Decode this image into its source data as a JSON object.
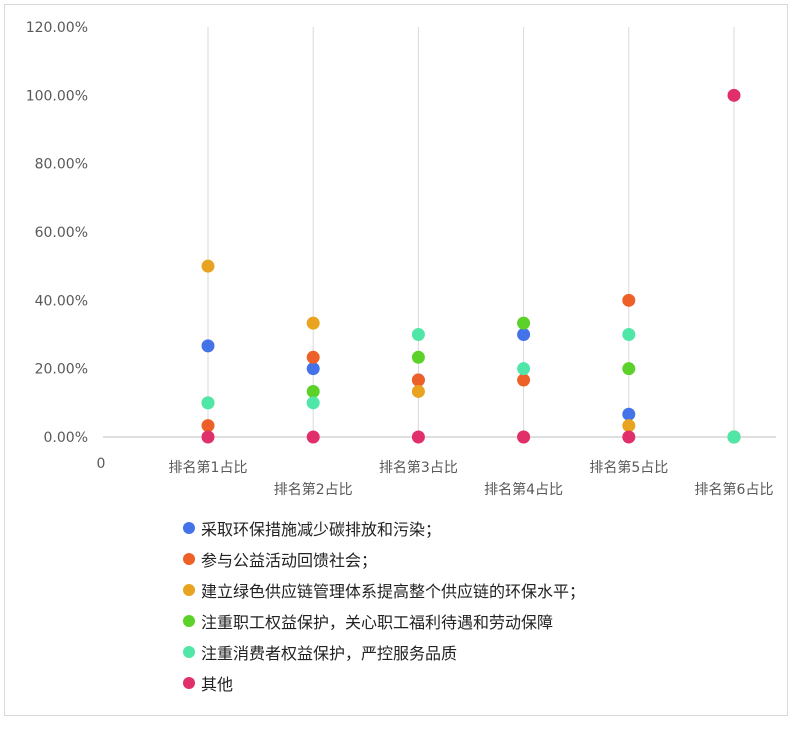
{
  "chart_data": {
    "type": "scatter",
    "title": "",
    "xlabel": "",
    "ylabel": "",
    "x_origin_label": "0",
    "categories": [
      "排名第1占比",
      "排名第2占比",
      "排名第3占比",
      "排名第4占比",
      "排名第5占比",
      "排名第6占比"
    ],
    "ylim": [
      0,
      120
    ],
    "yticks": [
      "0.00%",
      "20.00%",
      "40.00%",
      "60.00%",
      "80.00%",
      "100.00%",
      "120.00%"
    ],
    "ytick_values": [
      0,
      20,
      40,
      60,
      80,
      100,
      120
    ],
    "grid": {
      "vertical": true,
      "horizontal": false
    },
    "legend_position": "bottom",
    "series": [
      {
        "name": "采取环保措施减少碳排放和污染；",
        "color": "#4472e8",
        "values": [
          26.67,
          20,
          16.67,
          30,
          6.67,
          0
        ]
      },
      {
        "name": "参与公益活动回馈社会；",
        "color": "#ed6128",
        "values": [
          3.33,
          23.33,
          16.67,
          16.67,
          40,
          0
        ]
      },
      {
        "name": "建立绿色供应链管理体系提高整个供应链的环保水平；",
        "color": "#e8a420",
        "values": [
          50,
          33.33,
          13.33,
          0,
          3.33,
          0
        ]
      },
      {
        "name": "注重职工权益保护，关心职工福利待遇和劳动保障",
        "color": "#5cd12a",
        "values": [
          10,
          13.33,
          23.33,
          33.33,
          20,
          0
        ]
      },
      {
        "name": "注重消费者权益保护，严控服务品质",
        "color": "#4fe6a8",
        "values": [
          10,
          10,
          30,
          20,
          30,
          0
        ]
      },
      {
        "name": "其他",
        "color": "#e02f6b",
        "values": [
          0,
          0,
          0,
          0,
          0,
          100
        ]
      }
    ]
  }
}
